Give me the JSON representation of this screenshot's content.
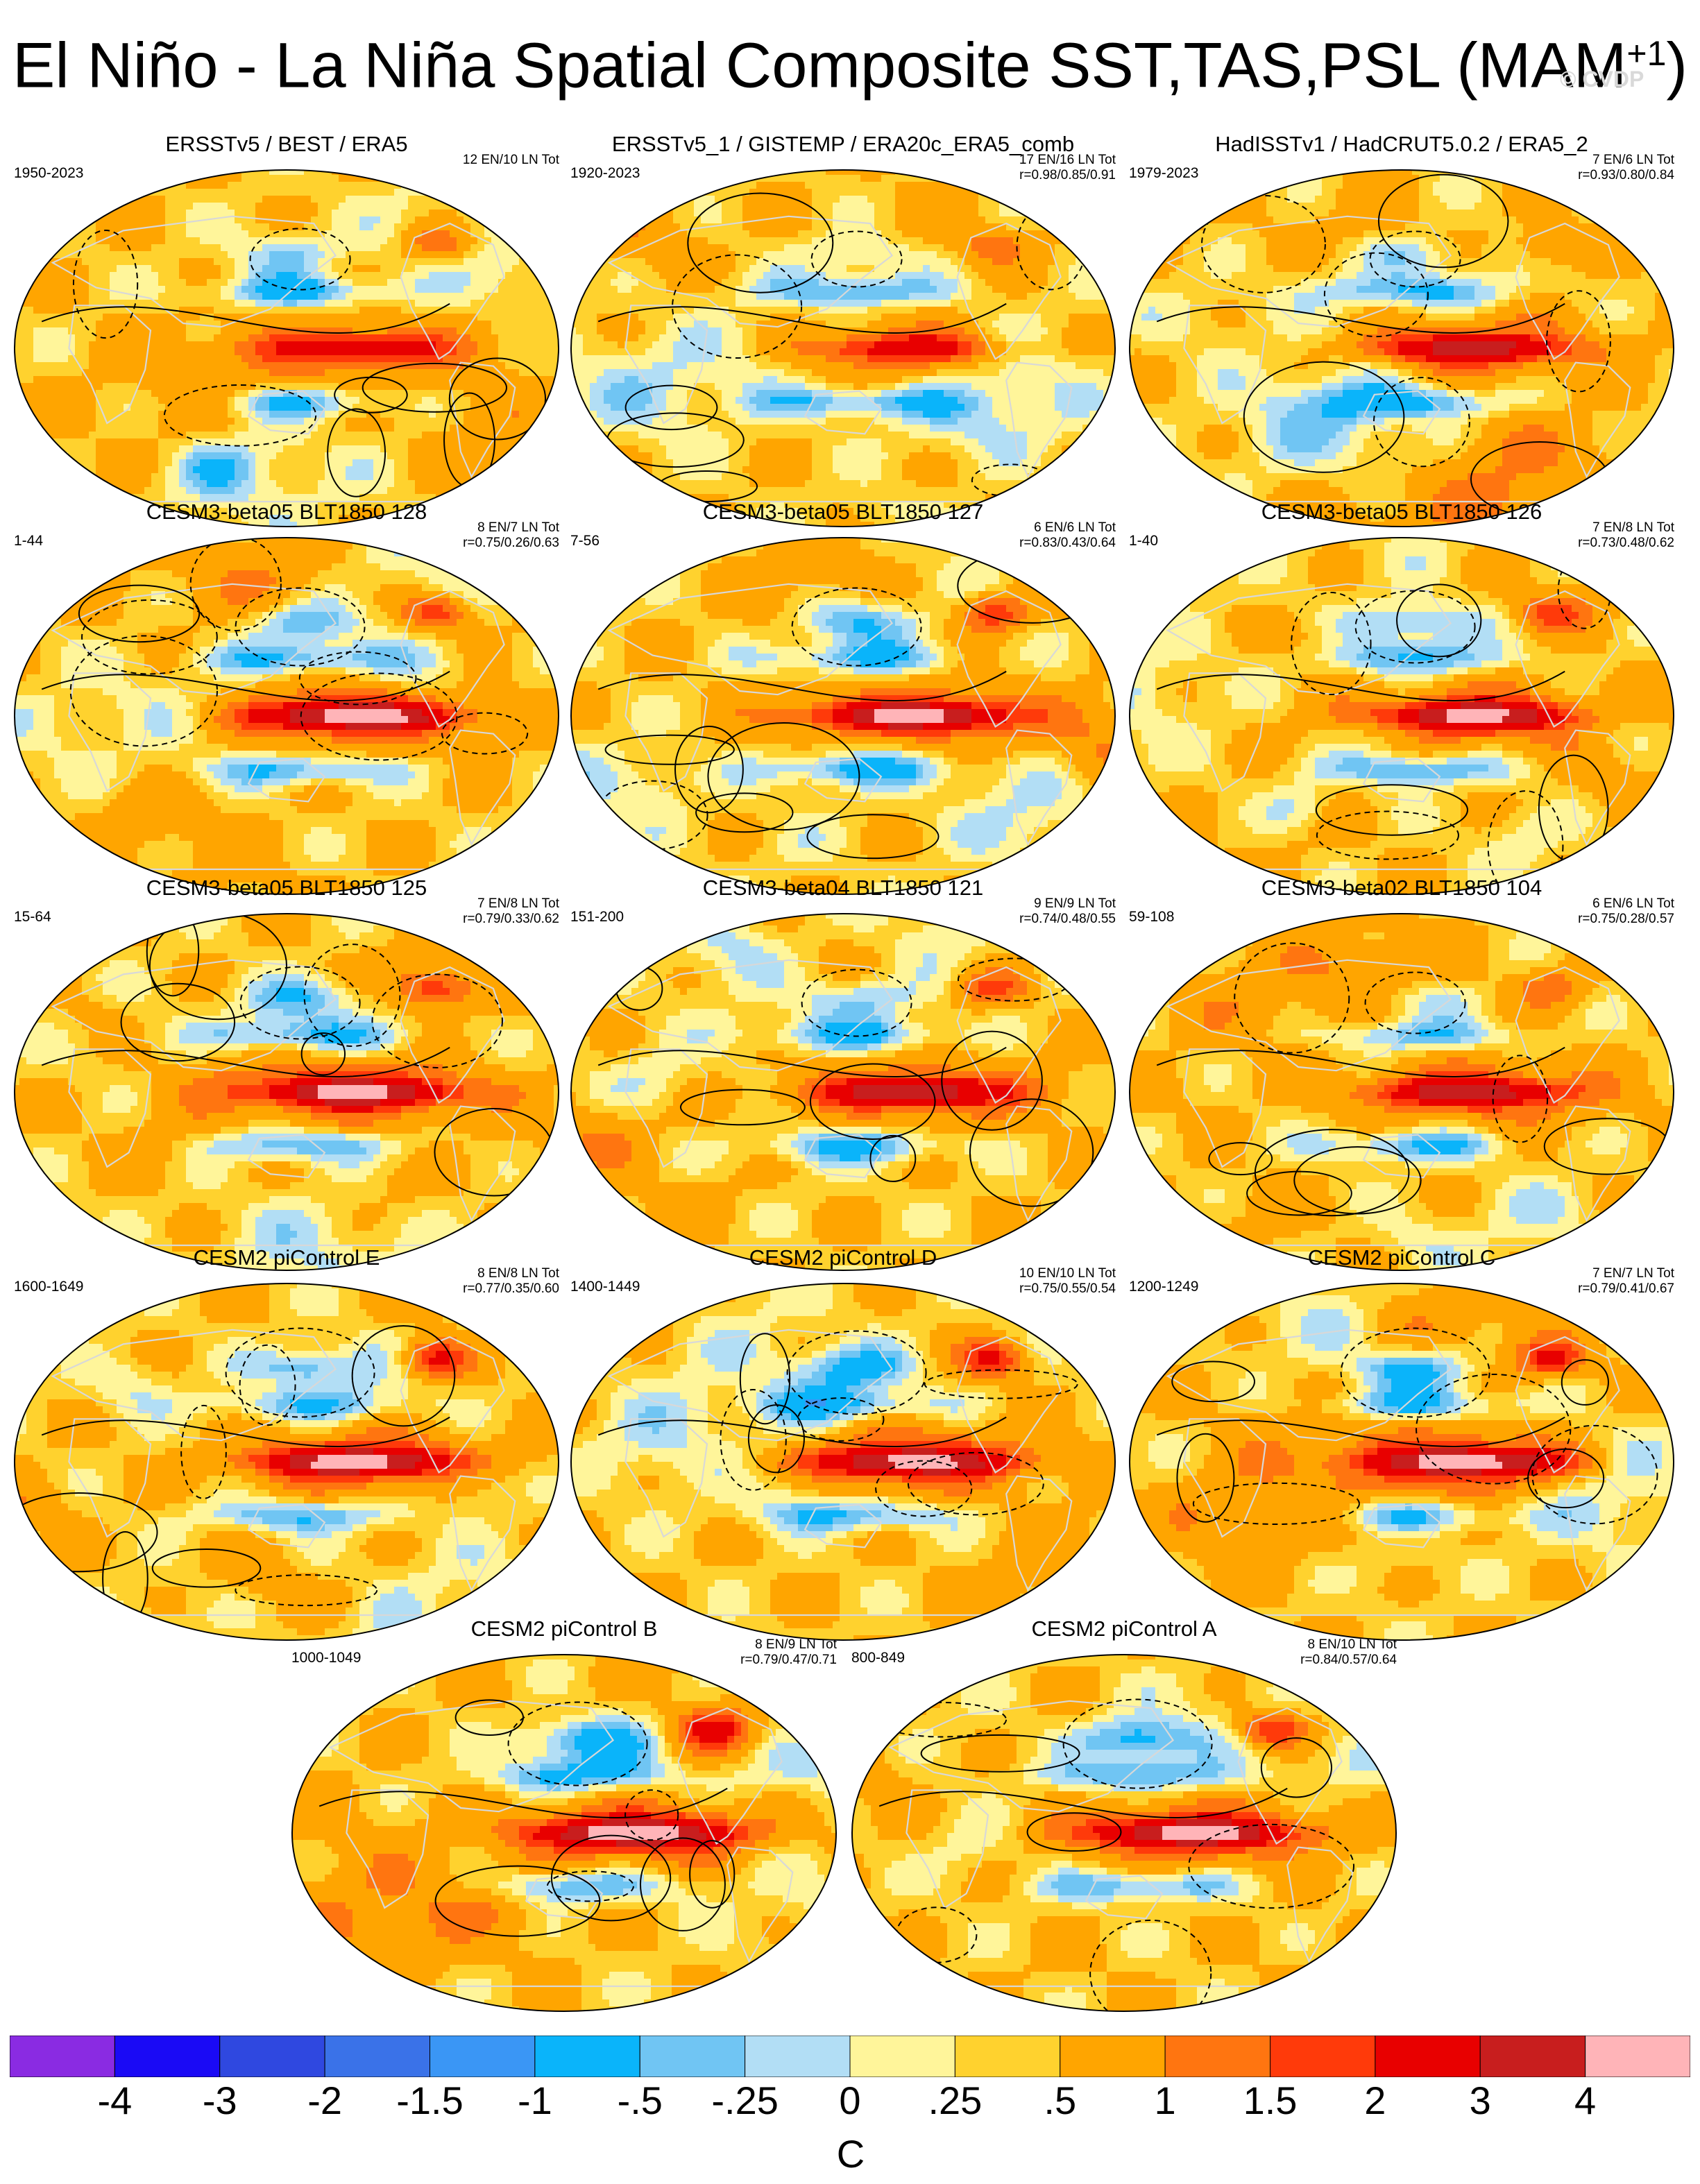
{
  "title": "El Niño - La Niña Spatial Composite SST,TAS,PSL (MAM",
  "title_sup": "+1",
  "title_end": ")",
  "watermark": "© CVDP",
  "palette": {
    "colors": [
      "#8a2be2",
      "#1a0af5",
      "#2f48e0",
      "#3a72e8",
      "#3a96f5",
      "#0ab4fa",
      "#70c5f3",
      "#b2def5",
      "#fff59a",
      "#ffd22e",
      "#ffa500",
      "#ff7510",
      "#ff3a0a",
      "#e80000",
      "#c81e1e",
      "#ffb4b8"
    ],
    "land_color": "#ffffff",
    "coast_color": "#d8d8d8",
    "contour_color": "#000000"
  },
  "colorbar": {
    "ticks": [
      "-4",
      "-3",
      "-2",
      "-1.5",
      "-1",
      "-.5",
      "-.25",
      "0",
      ".25",
      ".5",
      "1",
      "1.5",
      "2",
      "3",
      "4"
    ],
    "units": "C"
  },
  "panels": [
    {
      "title": "ERSSTv5 / BEST / ERA5",
      "period": "1950-2023",
      "counts": "12 EN/10 LN Tot",
      "r": "",
      "seed": 11,
      "pac": 0.55,
      "pna": 0.6
    },
    {
      "title": "ERSSTv5_1 / GISTEMP / ERA20c_ERA5_comb",
      "period": "1920-2023",
      "counts": "17 EN/16 LN Tot",
      "r": "r=0.98/0.85/0.91",
      "seed": 23,
      "pac": 0.5,
      "pna": 0.5
    },
    {
      "title": "HadISSTv1 / HadCRUT5.0.2 / ERA5_2",
      "period": "1979-2023",
      "counts": "7 EN/6 LN Tot",
      "r": "r=0.93/0.80/0.84",
      "seed": 37,
      "pac": 0.75,
      "pna": 0.5
    },
    {
      "title": "CESM3-beta05 BLT1850 128",
      "period": "1-44",
      "counts": "8 EN/7 LN Tot",
      "r": "r=0.75/0.26/0.63",
      "seed": 41,
      "pac": 1.05,
      "pna": 0.9
    },
    {
      "title": "CESM3-beta05 BLT1850 127",
      "period": "7-56",
      "counts": "6 EN/6 LN Tot",
      "r": "r=0.83/0.43/0.64",
      "seed": 53,
      "pac": 1.0,
      "pna": 0.9
    },
    {
      "title": "CESM3-beta05 BLT1850 126",
      "period": "1-40",
      "counts": "7 EN/8 LN Tot",
      "r": "r=0.73/0.48/0.62",
      "seed": 67,
      "pac": 0.95,
      "pna": 0.8
    },
    {
      "title": "CESM3-beta05 BLT1850 125",
      "period": "15-64",
      "counts": "7 EN/8 LN Tot",
      "r": "r=0.79/0.33/0.62",
      "seed": 71,
      "pac": 0.95,
      "pna": 0.8
    },
    {
      "title": "CESM3-beta04 BLT1850 121",
      "period": "151-200",
      "counts": "9 EN/9 LN Tot",
      "r": "r=0.74/0.48/0.55",
      "seed": 83,
      "pac": 0.8,
      "pna": 0.7
    },
    {
      "title": "CESM3-beta02 BLT1850 104",
      "period": "59-108",
      "counts": "6 EN/6 LN Tot",
      "r": "r=0.75/0.28/0.57",
      "seed": 97,
      "pac": 0.8,
      "pna": 0.6
    },
    {
      "title": "CESM2 piControl E",
      "period": "1600-1649",
      "counts": "8 EN/8 LN Tot",
      "r": "r=0.77/0.35/0.60",
      "seed": 101,
      "pac": 1.0,
      "pna": 1.1
    },
    {
      "title": "CESM2 piControl D",
      "period": "1400-1449",
      "counts": "10 EN/10 LN Tot",
      "r": "r=0.75/0.55/0.54",
      "seed": 113,
      "pac": 0.95,
      "pna": 1.0
    },
    {
      "title": "CESM2 piControl C",
      "period": "1200-1249",
      "counts": "7 EN/7 LN Tot",
      "r": "r=0.79/0.41/0.67",
      "seed": 127,
      "pac": 1.0,
      "pna": 1.1
    },
    {
      "title": "CESM2 piControl B",
      "period": "1000-1049",
      "counts": "8 EN/9 LN Tot",
      "r": "r=0.79/0.47/0.71",
      "seed": 131,
      "pac": 1.05,
      "pna": 1.0
    },
    {
      "title": "CESM2 piControl A",
      "period": "800-849",
      "counts": "8 EN/10 LN Tot",
      "r": "r=0.84/0.57/0.64",
      "seed": 139,
      "pac": 1.0,
      "pna": 1.1
    }
  ]
}
